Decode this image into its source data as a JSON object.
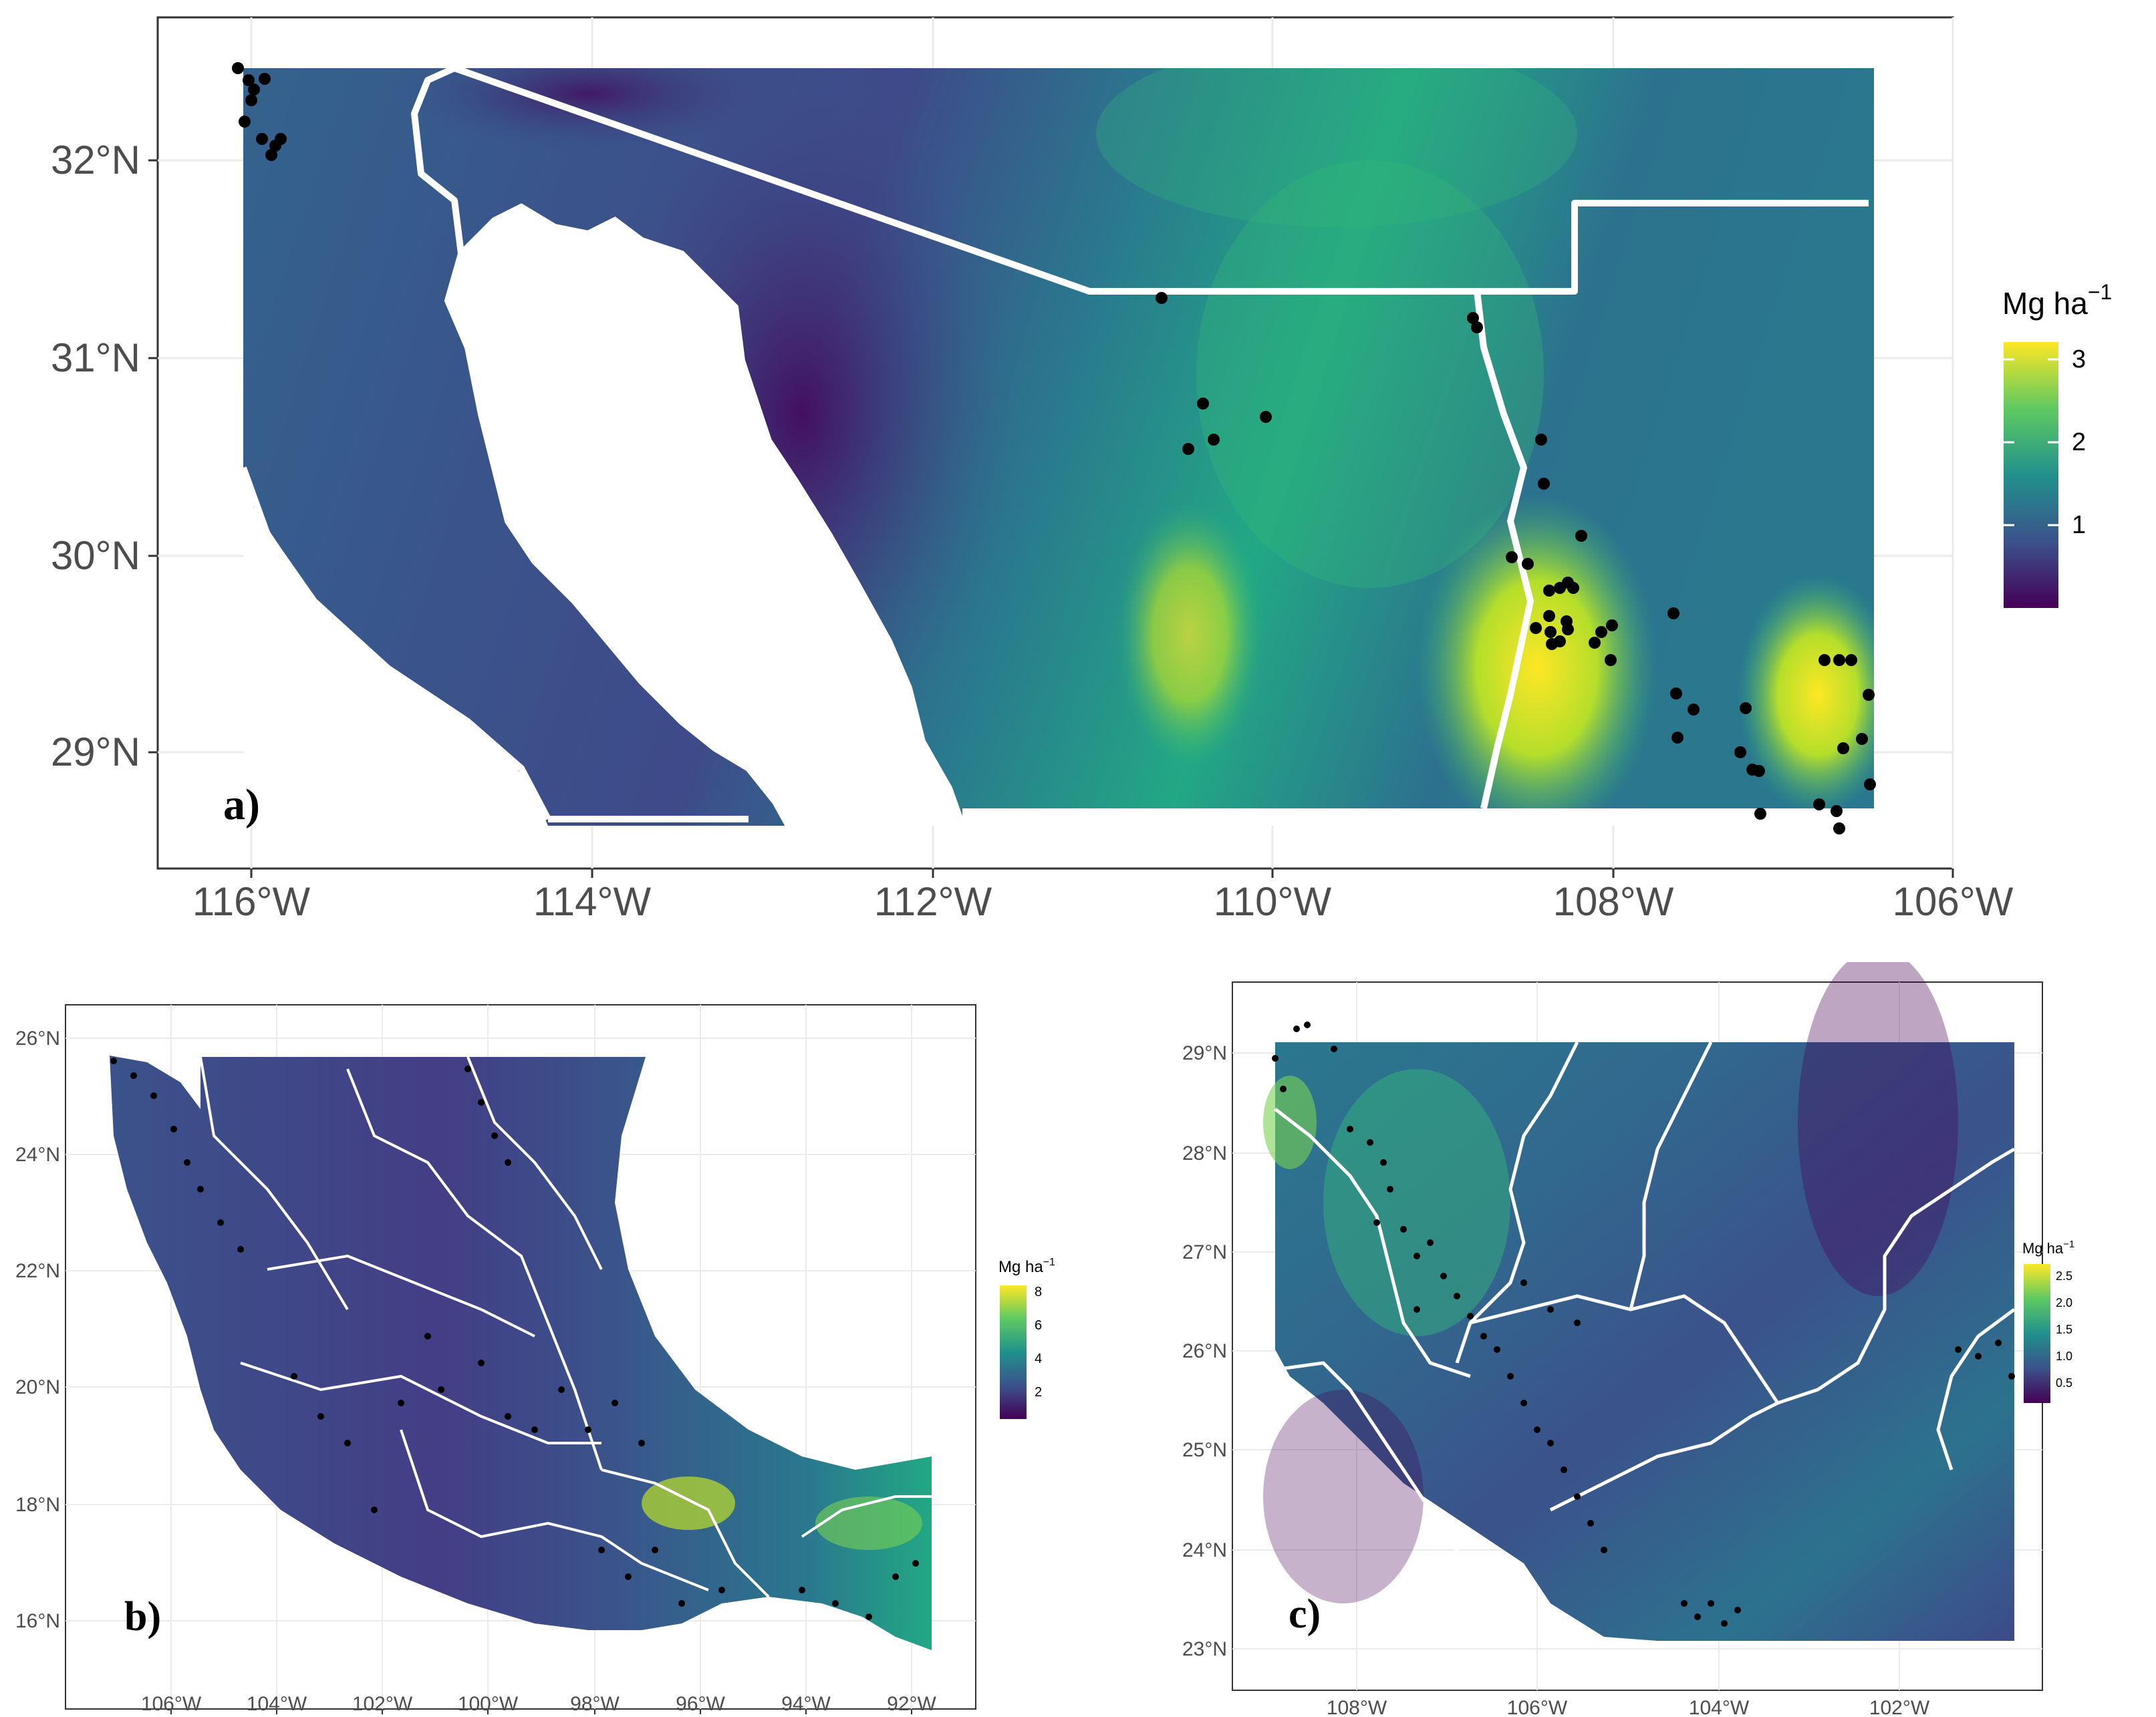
{
  "units_label": "Mg ha",
  "units_exponent": "−1",
  "panels": [
    {
      "id": "a",
      "label": "a)",
      "x_ticks": [
        "116°W",
        "114°W",
        "112°W",
        "110°W",
        "108°W",
        "106°W"
      ],
      "y_ticks": [
        "32°N",
        "31°N",
        "30°N",
        "29°N"
      ],
      "legend_ticks": [
        "3",
        "2",
        "1"
      ],
      "colorscale": "viridis"
    },
    {
      "id": "b",
      "label": "b)",
      "x_ticks": [
        "106°W",
        "104°W",
        "102°W",
        "100°W",
        "98°W",
        "96°W",
        "94°W",
        "92°W"
      ],
      "y_ticks": [
        "26°N",
        "24°N",
        "22°N",
        "20°N",
        "18°N",
        "16°N"
      ],
      "legend_ticks": [
        "8",
        "6",
        "4",
        "2"
      ],
      "colorscale": "viridis"
    },
    {
      "id": "c",
      "label": "c)",
      "x_ticks": [
        "108°W",
        "106°W",
        "104°W",
        "102°W"
      ],
      "y_ticks": [
        "29°N",
        "28°N",
        "27°N",
        "26°N",
        "25°N",
        "24°N",
        "23°N"
      ],
      "legend_ticks": [
        "2.5",
        "2.0",
        "1.5",
        "1.0",
        "0.5"
      ],
      "colorscale": "viridis"
    }
  ]
}
